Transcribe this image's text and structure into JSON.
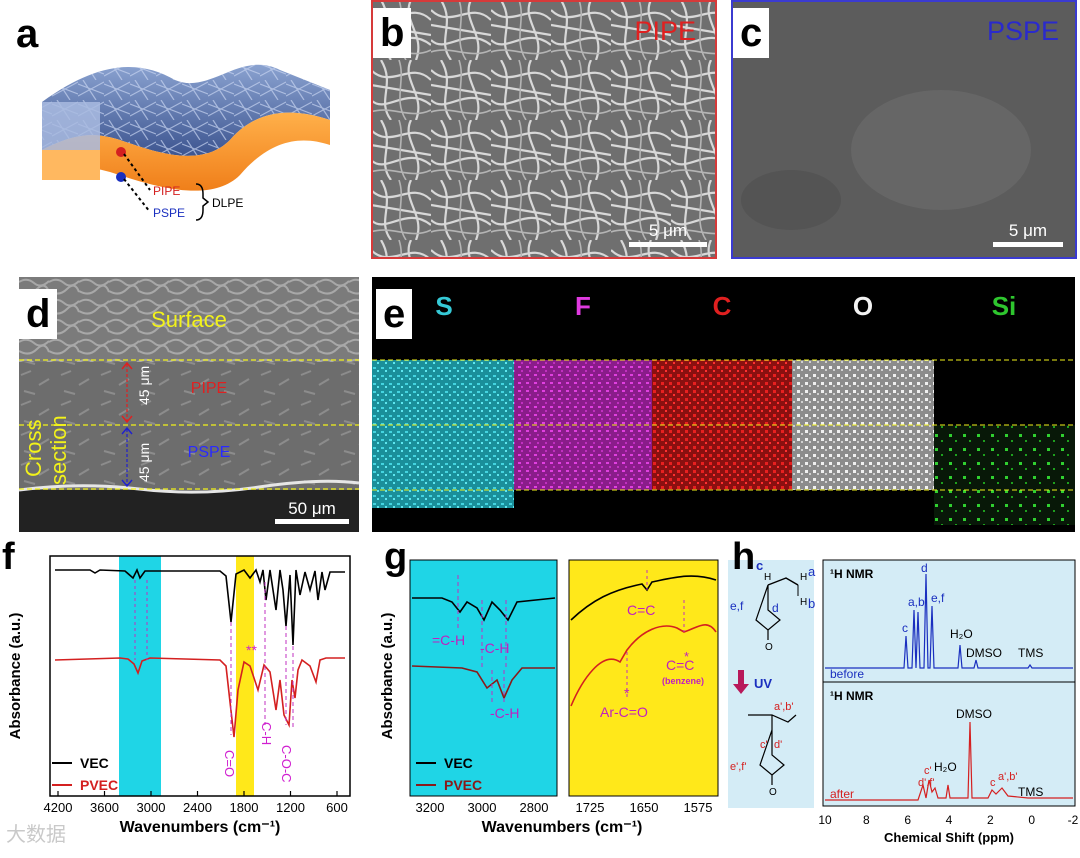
{
  "labels": {
    "a": "a",
    "b": "b",
    "c": "c",
    "d": "d",
    "e": "e",
    "f": "f",
    "g": "g",
    "h": "h"
  },
  "panel_a": {
    "pipe": "PIPE",
    "pspe": "PSPE",
    "dlpe": "DLPE"
  },
  "panel_b": {
    "tag": "PIPE",
    "scale": "5 μm"
  },
  "panel_c": {
    "tag": "PSPE",
    "scale": "5 μm"
  },
  "panel_d": {
    "surface": "Surface",
    "cross_line1": "Cross",
    "cross_line2": "section",
    "pipe": "PIPE",
    "pspe": "PSPE",
    "thick_top": "45 μm",
    "thick_bottom": "45 μm",
    "scale": "50 μm"
  },
  "panel_e": {
    "elements": [
      {
        "symbol": "S",
        "color": "#35c9d6"
      },
      {
        "symbol": "F",
        "color": "#e03ae0"
      },
      {
        "symbol": "C",
        "color": "#e02020"
      },
      {
        "symbol": "O",
        "color": "#f2f2f2"
      },
      {
        "symbol": "Si",
        "color": "#2ec62e"
      }
    ]
  },
  "panel_f": {
    "ylabel": "Absorbance (a.u.)",
    "xlabel": "Wavenumbers (cm⁻¹)",
    "ticks": [
      "4200",
      "3600",
      "3000",
      "2400",
      "1800",
      "1200",
      "600"
    ],
    "legend": [
      "VEC",
      "PVEC"
    ],
    "ann": {
      "co": "C=O",
      "ch": "C-H",
      "coc": "C-O-C",
      "stars": "**"
    }
  },
  "panel_g": {
    "ylabel": "Absorbance (a.u.)",
    "xlabel": "Wavenumbers (cm⁻¹)",
    "ticks_left": [
      "3200",
      "3000",
      "2800"
    ],
    "ticks_right": [
      "1725",
      "1650",
      "1575"
    ],
    "legend": [
      "VEC",
      "PVEC"
    ],
    "ann": {
      "eqch": "=C-H",
      "ch1": "-C-H",
      "ch2": "-C-H",
      "cc": "C=C",
      "arco": "Ar-C=O",
      "ccstar": "C=C",
      "star": "*",
      "benzene": "(benzene)"
    }
  },
  "panel_h": {
    "uv": "UV",
    "nmr_title": "¹H NMR",
    "top": {
      "before": "before",
      "h2o": "H₂O",
      "dmso": "DMSO",
      "tms": "TMS",
      "a_b": "a,b",
      "d": "d",
      "ef": "e,f",
      "c": "c"
    },
    "bottom": {
      "after": "after",
      "dmso": "DMSO",
      "h2o": "H₂O",
      "tms": "TMS",
      "cp": "c'",
      "dfp": "d',f'",
      "ab": "a',b'",
      "c2": "c"
    },
    "xlabel": "Chemical Shift (ppm)",
    "ticks": [
      "10",
      "8",
      "6",
      "4",
      "2",
      "0",
      "-2"
    ],
    "mol": {
      "c": "c",
      "h1": "H",
      "h2": "H",
      "h3": "H",
      "a": "a",
      "b": "b",
      "ef": "e,f",
      "d": "d",
      "o": "O",
      "ap": "a',b'",
      "cp": "c'",
      "dp": "d'",
      "efp": "e',f'"
    }
  },
  "watermark": "大数据"
}
